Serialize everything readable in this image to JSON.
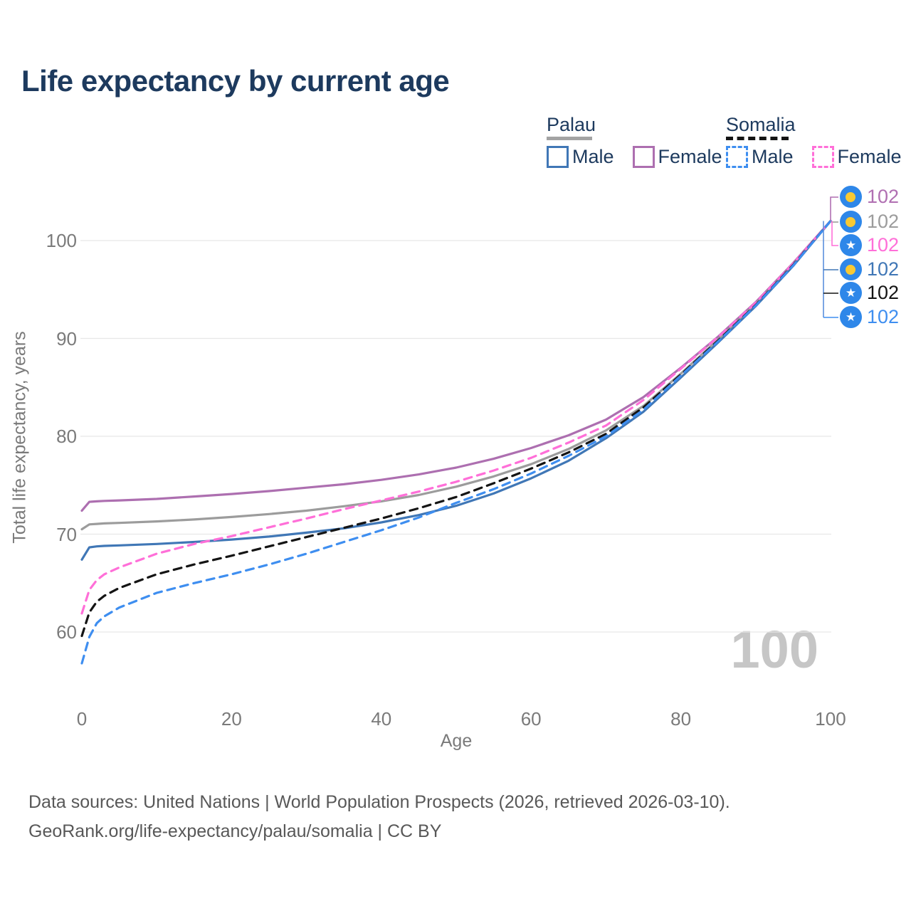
{
  "title": "Life expectancy by current age",
  "legend": {
    "groups": [
      {
        "name": "Palau",
        "line_style": "solid",
        "underline_color": "#a3a3a3",
        "items": [
          {
            "label": "Male",
            "color": "#4077b6"
          },
          {
            "label": "Female",
            "color": "#ad6fb0"
          }
        ]
      },
      {
        "name": "Somalia",
        "line_style": "dashed",
        "underline_color": "#141414",
        "items": [
          {
            "label": "Male",
            "color": "#3e8ef0"
          },
          {
            "label": "Female",
            "color": "#ff6fd8"
          }
        ]
      }
    ]
  },
  "watermark": "100",
  "chart_data": {
    "type": "line",
    "title": "Life expectancy by current age",
    "xlabel": "Age",
    "ylabel": "Total life expectancy, years",
    "xlim": [
      0,
      100
    ],
    "ylim": [
      56,
      104
    ],
    "x_ticks": [
      0,
      20,
      40,
      60,
      80,
      100
    ],
    "y_ticks": [
      60,
      70,
      80,
      90,
      100
    ],
    "grid": "horizontal",
    "legend_position": "top-right",
    "x": [
      0,
      1,
      2,
      3,
      5,
      10,
      15,
      20,
      25,
      30,
      35,
      40,
      45,
      50,
      55,
      60,
      65,
      70,
      75,
      80,
      85,
      90,
      95,
      100
    ],
    "series": [
      {
        "name": "Palau Female",
        "country": "Palau",
        "sex": "Female",
        "style": "solid",
        "color": "#ad6fb0",
        "values": [
          72.4,
          73.3,
          73.35,
          73.4,
          73.45,
          73.6,
          73.85,
          74.1,
          74.4,
          74.75,
          75.1,
          75.55,
          76.1,
          76.8,
          77.7,
          78.8,
          80.1,
          81.7,
          84.0,
          87.0,
          90.2,
          93.7,
          97.7,
          102
        ]
      },
      {
        "name": "Palau Both sexes",
        "country": "Palau",
        "sex": "Both",
        "style": "solid",
        "color": "#9c9c9c",
        "values": [
          70.5,
          71.0,
          71.05,
          71.1,
          71.15,
          71.3,
          71.5,
          71.75,
          72.05,
          72.4,
          72.85,
          73.35,
          74.0,
          74.85,
          75.9,
          77.15,
          78.7,
          80.6,
          83.1,
          86.4,
          89.9,
          93.5,
          97.5,
          102
        ]
      },
      {
        "name": "Palau Male",
        "country": "Palau",
        "sex": "Male",
        "style": "solid",
        "color": "#4077b6",
        "values": [
          67.4,
          68.65,
          68.75,
          68.8,
          68.85,
          69.0,
          69.2,
          69.45,
          69.75,
          70.15,
          70.6,
          71.2,
          71.95,
          72.9,
          74.15,
          75.7,
          77.5,
          79.8,
          82.5,
          86.0,
          89.6,
          93.3,
          97.4,
          102
        ]
      },
      {
        "name": "Somalia Female",
        "country": "Somalia",
        "sex": "Female",
        "style": "dashed",
        "color": "#ff6fd8",
        "values": [
          61.9,
          64.3,
          65.3,
          65.9,
          66.6,
          68.0,
          69.0,
          69.8,
          70.7,
          71.6,
          72.55,
          73.45,
          74.35,
          75.35,
          76.5,
          77.8,
          79.35,
          81.1,
          83.7,
          86.9,
          90.15,
          93.65,
          97.65,
          102
        ]
      },
      {
        "name": "Somalia Both sexes",
        "country": "Somalia",
        "sex": "Both",
        "style": "dashed",
        "color": "#141414",
        "values": [
          59.6,
          62.0,
          63.1,
          63.7,
          64.5,
          65.9,
          66.9,
          67.8,
          68.75,
          69.7,
          70.65,
          71.6,
          72.65,
          73.8,
          75.2,
          76.7,
          78.35,
          80.25,
          82.95,
          86.3,
          89.8,
          93.4,
          97.5,
          102
        ]
      },
      {
        "name": "Somalia Male",
        "country": "Somalia",
        "sex": "Male",
        "style": "dashed",
        "color": "#3e8ef0",
        "values": [
          56.8,
          59.5,
          60.9,
          61.6,
          62.5,
          64.0,
          65.0,
          65.9,
          66.9,
          68.0,
          69.2,
          70.4,
          71.7,
          73.2,
          74.6,
          76.2,
          78.0,
          80.0,
          82.7,
          86.2,
          89.7,
          93.35,
          97.45,
          102
        ]
      }
    ],
    "end_labels": [
      {
        "series": "Palau Female",
        "value": "102",
        "flag": "palau",
        "color": "#b06fb2"
      },
      {
        "series": "Palau Both sexes",
        "value": "102",
        "flag": "palau",
        "color": "#9c9c9c"
      },
      {
        "series": "Somalia Female",
        "value": "102",
        "flag": "somalia",
        "color": "#ff6fd8"
      },
      {
        "series": "Palau Male",
        "value": "102",
        "flag": "palau",
        "color": "#4077b6"
      },
      {
        "series": "Somalia Both sexes",
        "value": "102",
        "flag": "somalia",
        "color": "#141414"
      },
      {
        "series": "Somalia Male",
        "value": "102",
        "flag": "somalia",
        "color": "#3e8ef0"
      }
    ]
  },
  "footer": {
    "line1": "Data sources: United Nations | World Population Prospects (2026, retrieved 2026-03-10).",
    "line2": "GeoRank.org/life-expectancy/palau/somalia | CC BY"
  }
}
